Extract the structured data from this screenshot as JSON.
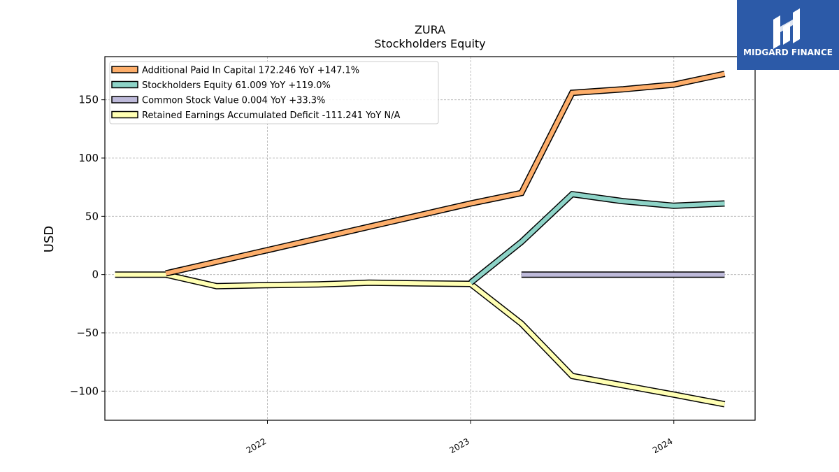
{
  "brand": {
    "name": "MIDGARD FINANCE",
    "bg_color": "#2c5aa8"
  },
  "chart_data": {
    "type": "line",
    "title": "ZURA",
    "subtitle": "Stockholders  Equity",
    "ylabel": "USD",
    "xlabel": "",
    "ylim": [
      -125,
      187
    ],
    "xlim": [
      2021.2,
      2024.4
    ],
    "yticks": [
      -100,
      -50,
      0,
      50,
      100,
      150
    ],
    "ytick_labels": [
      "−100",
      "−50",
      "0",
      "50",
      "100",
      "150"
    ],
    "xticks": [
      2022,
      2023,
      2024
    ],
    "xtick_labels": [
      "2022",
      "2023",
      "2024"
    ],
    "grid": true,
    "legend_position": "top-left",
    "series": [
      {
        "name": "Additional Paid In Capital  172.246 YoY +147.1%",
        "color": "#fdae6b",
        "x": [
          2021.5,
          2022.0,
          2022.5,
          2023.0,
          2023.25,
          2023.5,
          2023.75,
          2024.0,
          2024.25
        ],
        "values": [
          1,
          21,
          41,
          61,
          70,
          156,
          159,
          163,
          172.246
        ]
      },
      {
        "name": "Stockholders Equity  61.009 YoY +119.0%",
        "color": "#8dd3c7",
        "x": [
          2023.0,
          2023.25,
          2023.5,
          2023.75,
          2024.0,
          2024.25
        ],
        "values": [
          -7,
          28,
          69,
          63,
          59,
          61.009
        ]
      },
      {
        "name": "Common Stock Value  0.004 YoY +33.3%",
        "color": "#bebada",
        "x": [
          2023.25,
          2023.5,
          2023.75,
          2024.0,
          2024.25
        ],
        "values": [
          0.003,
          0.003,
          0.004,
          0.004,
          0.004
        ]
      },
      {
        "name": "Retained Earnings Accumulated Deficit  -111.241 YoY N/A",
        "color": "#ffffb3",
        "x": [
          2021.25,
          2021.5,
          2021.75,
          2022.0,
          2022.25,
          2022.5,
          2022.75,
          2023.0,
          2023.25,
          2023.5,
          2023.75,
          2024.0,
          2024.25
        ],
        "values": [
          0,
          0,
          -10,
          -9,
          -8.5,
          -7,
          -7.5,
          -8,
          -42,
          -87,
          -95,
          -103,
          -111.241
        ]
      }
    ]
  }
}
